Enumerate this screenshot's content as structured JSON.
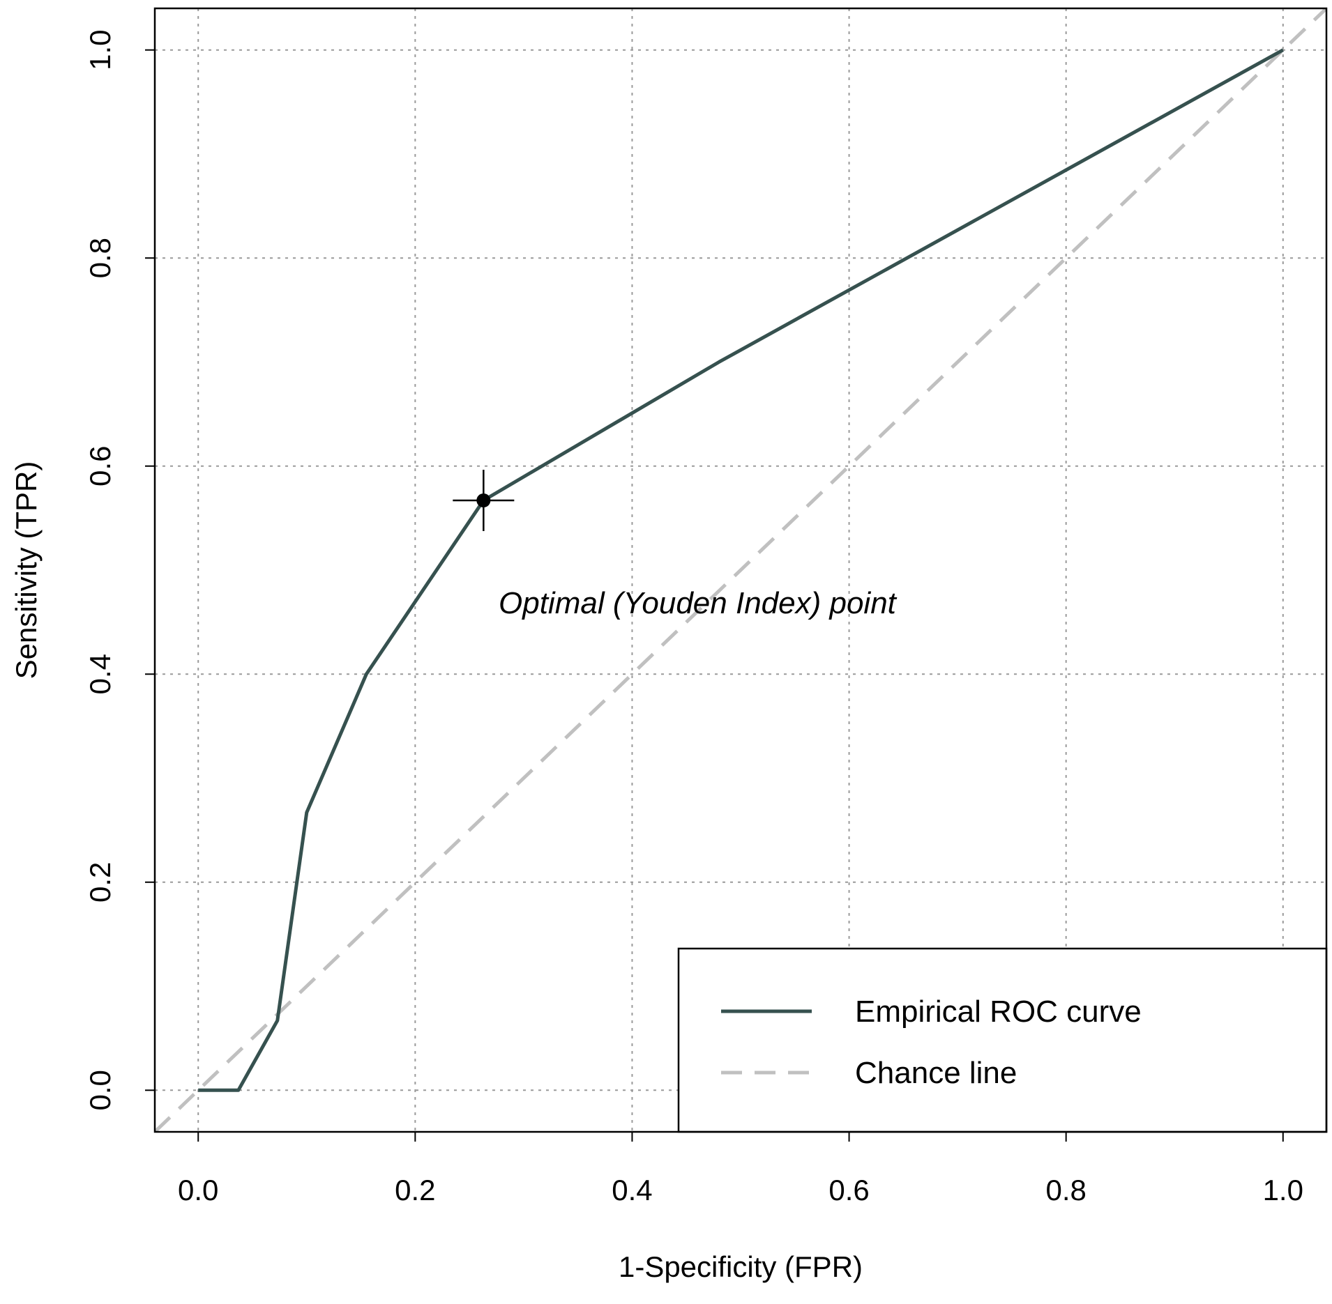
{
  "chart_data": {
    "type": "line",
    "title": "",
    "xlabel": "1-Specificity (FPR)",
    "ylabel": "Sensitivity (TPR)",
    "xlim": [
      -0.04,
      1.04
    ],
    "ylim": [
      -0.04,
      1.04
    ],
    "grid": true,
    "x_ticks": [
      0.0,
      0.2,
      0.4,
      0.6,
      0.8,
      1.0
    ],
    "y_ticks": [
      0.0,
      0.2,
      0.4,
      0.6,
      0.8,
      1.0
    ],
    "x_tick_labels": [
      "0.0",
      "0.2",
      "0.4",
      "0.6",
      "0.8",
      "1.0"
    ],
    "y_tick_labels": [
      "0.0",
      "0.2",
      "0.4",
      "0.6",
      "0.8",
      "1.0"
    ],
    "series": [
      {
        "name": "Empirical ROC curve",
        "style": "solid",
        "color": "#36514f",
        "x": [
          0.0,
          0.037,
          0.073,
          0.1,
          0.155,
          0.263,
          0.48,
          1.0
        ],
        "y": [
          0.0,
          0.0,
          0.067,
          0.267,
          0.4,
          0.567,
          0.7,
          1.0
        ]
      },
      {
        "name": "Chance line",
        "style": "dashed",
        "color": "#c0c0c0",
        "x": [
          -0.04,
          1.04
        ],
        "y": [
          -0.04,
          1.04
        ]
      }
    ],
    "optimal_point": {
      "x": 0.263,
      "y": 0.567
    },
    "annotation": "Optimal (Youden Index) point",
    "legend": {
      "position": "bottom-right",
      "entries": [
        {
          "label": "Empirical ROC curve",
          "style": "solid",
          "color": "#36514f"
        },
        {
          "label": "Chance line",
          "style": "dashed",
          "color": "#c0c0c0"
        }
      ]
    }
  }
}
